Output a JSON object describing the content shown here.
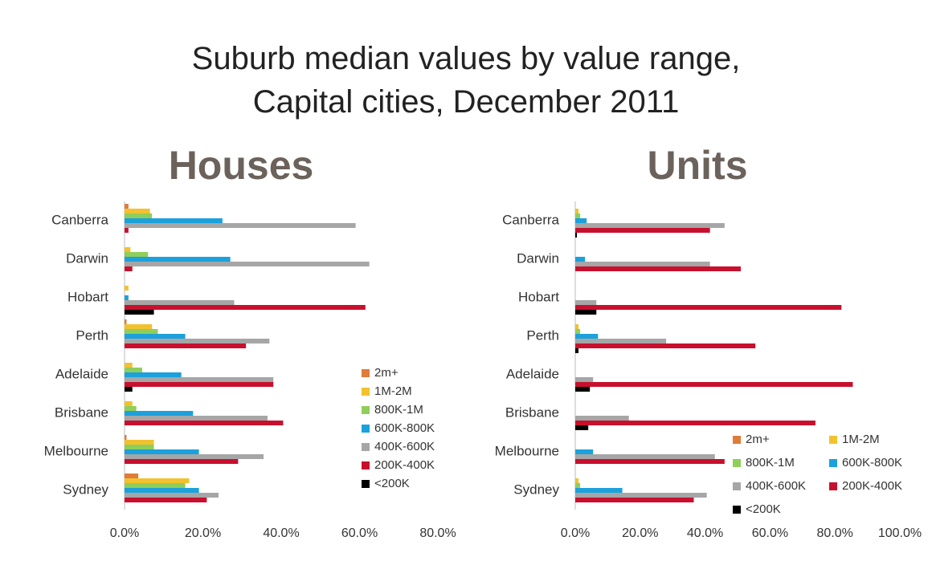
{
  "title": "Suburb median values by value range, Capital cities, December 2011",
  "chart_data": [
    {
      "type": "bar",
      "orientation": "horizontal",
      "title": "Houses",
      "categories": [
        "Canberra",
        "Darwin",
        "Hobart",
        "Perth",
        "Adelaide",
        "Brisbane",
        "Melbourne",
        "Sydney"
      ],
      "series": [
        {
          "name": "2m+",
          "color": "#e07b39",
          "values": [
            1,
            0,
            0,
            0.5,
            0,
            0,
            0.5,
            3.5
          ]
        },
        {
          "name": "1M-2M",
          "color": "#f2c12e",
          "values": [
            6.5,
            1.5,
            1,
            7,
            2,
            2,
            7.5,
            16.5
          ]
        },
        {
          "name": "800K-1M",
          "color": "#8fce5a",
          "values": [
            7,
            6,
            0,
            8.5,
            4.5,
            3,
            7.5,
            15.5
          ]
        },
        {
          "name": "600K-800K",
          "color": "#1ba1dc",
          "values": [
            25,
            27,
            1,
            15.5,
            14.5,
            17.5,
            19,
            19
          ]
        },
        {
          "name": "400K-600K",
          "color": "#a6a6a6",
          "values": [
            59,
            62.5,
            28,
            37,
            38,
            36.5,
            35.5,
            24
          ]
        },
        {
          "name": "200K-400K",
          "color": "#c8102e",
          "values": [
            1,
            2,
            61.5,
            31,
            38,
            40.5,
            29,
            21
          ]
        },
        {
          "name": "<200K",
          "color": "#000000",
          "values": [
            0,
            0,
            7.5,
            0,
            2,
            0,
            0,
            0
          ]
        }
      ],
      "xlim": [
        0,
        80
      ],
      "xticks": [
        {
          "value": 0,
          "label": "0.0%"
        },
        {
          "value": 20,
          "label": "20.0%"
        },
        {
          "value": 40,
          "label": "40.0%"
        },
        {
          "value": 60,
          "label": "60.0%"
        },
        {
          "value": 80,
          "label": "80.0%"
        }
      ],
      "grid": false,
      "legend": "lower right",
      "legend_columns": 1
    },
    {
      "type": "bar",
      "orientation": "horizontal",
      "title": "Units",
      "categories": [
        "Canberra",
        "Darwin",
        "Hobart",
        "Perth",
        "Adelaide",
        "Brisbane",
        "Melbourne",
        "Sydney"
      ],
      "series": [
        {
          "name": "2m+",
          "color": "#e07b39",
          "values": [
            0,
            0,
            0,
            0,
            0,
            0,
            0,
            0
          ]
        },
        {
          "name": "1M-2M",
          "color": "#f2c12e",
          "values": [
            1,
            0,
            0,
            1,
            0,
            0,
            0,
            1
          ]
        },
        {
          "name": "800K-1M",
          "color": "#8fce5a",
          "values": [
            1.5,
            0,
            0,
            1.5,
            0,
            0,
            0,
            1.5
          ]
        },
        {
          "name": "600K-800K",
          "color": "#1ba1dc",
          "values": [
            3.5,
            3,
            0,
            7,
            0,
            0,
            5.5,
            14.5
          ]
        },
        {
          "name": "400K-600K",
          "color": "#a6a6a6",
          "values": [
            46,
            41.5,
            6.5,
            28,
            5.5,
            16.5,
            43,
            40.5
          ]
        },
        {
          "name": "200K-400K",
          "color": "#c8102e",
          "values": [
            41.5,
            51,
            82,
            55.5,
            85.5,
            74,
            46,
            36.5
          ]
        },
        {
          "name": "<200K",
          "color": "#000000",
          "values": [
            0.5,
            0,
            6.5,
            1,
            4.5,
            4,
            0,
            0
          ]
        }
      ],
      "xlim": [
        0,
        100
      ],
      "xticks": [
        {
          "value": 0,
          "label": "0.0%"
        },
        {
          "value": 20,
          "label": "20.0%"
        },
        {
          "value": 40,
          "label": "40.0%"
        },
        {
          "value": 60,
          "label": "60.0%"
        },
        {
          "value": 80,
          "label": "80.0%"
        },
        {
          "value": 100,
          "label": "100.0%"
        }
      ],
      "grid": false,
      "legend": "lower right",
      "legend_columns": 2
    }
  ]
}
